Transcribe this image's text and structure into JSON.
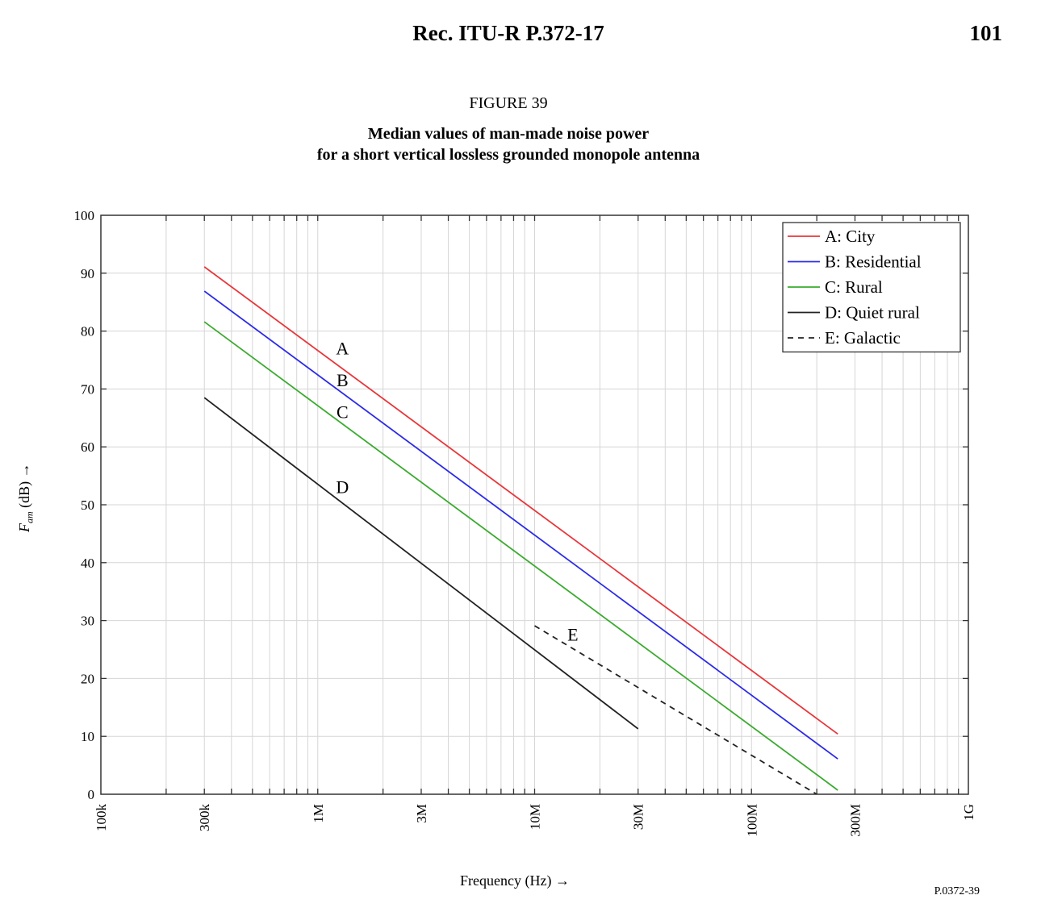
{
  "header": {
    "title": "Rec.  ITU-R  P.372-17",
    "page_number": "101"
  },
  "figure": {
    "label": "FIGURE 39",
    "title_lines": [
      "Median values of man-made noise power",
      "for a short vertical lossless grounded monopole antenna"
    ],
    "code": "P.0372-39"
  },
  "chart_data": {
    "type": "line",
    "xlabel": "Frequency (Hz) →",
    "ylabel": "F",
    "ylabel_subscript": "am",
    "ylabel_suffix": " (dB) →",
    "x_scale": "log",
    "xlim": [
      100000,
      1000000000
    ],
    "ylim": [
      0,
      100
    ],
    "x_ticks": [
      {
        "value": 100000,
        "label": "100k"
      },
      {
        "value": 300000,
        "label": "300k"
      },
      {
        "value": 1000000,
        "label": "1M"
      },
      {
        "value": 3000000,
        "label": "3M"
      },
      {
        "value": 10000000,
        "label": "10M"
      },
      {
        "value": 30000000,
        "label": "30M"
      },
      {
        "value": 100000000,
        "label": "100M"
      },
      {
        "value": 300000000,
        "label": "300M"
      },
      {
        "value": 1000000000,
        "label": "1G"
      }
    ],
    "y_ticks": [
      0,
      10,
      20,
      30,
      40,
      50,
      60,
      70,
      80,
      90,
      100
    ],
    "grid": true,
    "legend_position": "top-right",
    "series": [
      {
        "name": "A: City",
        "tag": "A",
        "color": "#e8363a",
        "dash": "solid",
        "x": [
          300000,
          250000000
        ],
        "y": [
          91.1,
          10.4
        ],
        "label_at": {
          "x": 1300000,
          "y": 76
        }
      },
      {
        "name": "B: Residential",
        "tag": "B",
        "color": "#2b2be8",
        "dash": "solid",
        "x": [
          300000,
          250000000
        ],
        "y": [
          86.9,
          6.1
        ],
        "label_at": {
          "x": 1300000,
          "y": 70.5
        }
      },
      {
        "name": "C: Rural",
        "tag": "C",
        "color": "#3aab2e",
        "dash": "solid",
        "x": [
          300000,
          250000000
        ],
        "y": [
          81.6,
          0.7
        ],
        "label_at": {
          "x": 1300000,
          "y": 65
        }
      },
      {
        "name": "D: Quiet rural",
        "tag": "D",
        "color": "#222222",
        "dash": "solid",
        "x": [
          300000,
          30000000
        ],
        "y": [
          68.5,
          11.3
        ],
        "label_at": {
          "x": 1300000,
          "y": 52
        }
      },
      {
        "name": "E: Galactic",
        "tag": "E",
        "color": "#222222",
        "dash": "dashed",
        "x": [
          10000000,
          200000000
        ],
        "y": [
          29.1,
          0
        ],
        "label_at": {
          "x": 15000000,
          "y": 26.5
        }
      }
    ]
  }
}
